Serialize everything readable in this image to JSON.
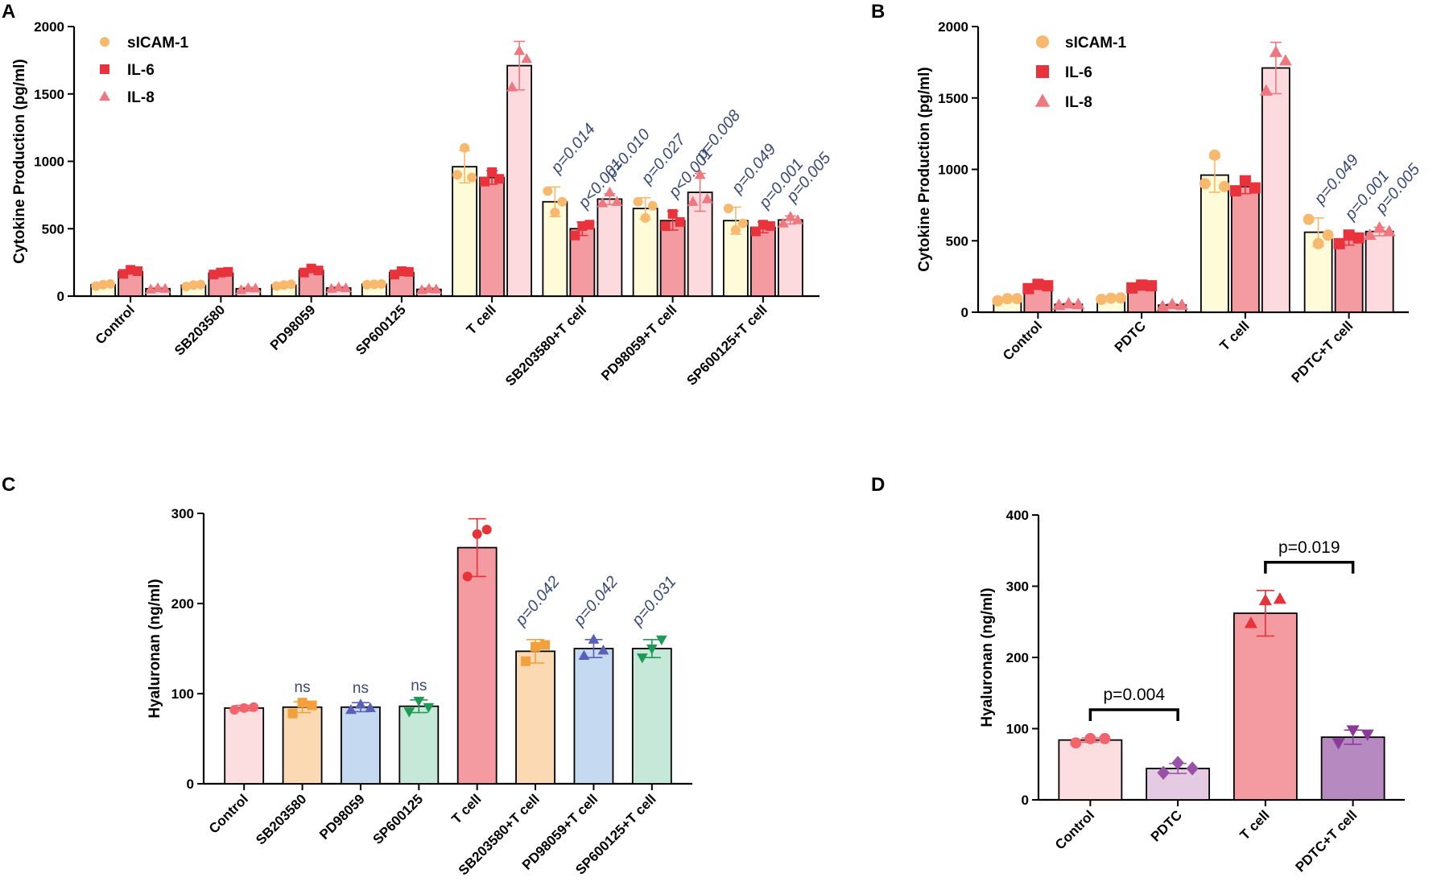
{
  "chart_data": [
    {
      "panel": "A",
      "type": "bar",
      "ylabel": "Cytokine Production (pg/ml)",
      "ylim": [
        0,
        2000
      ],
      "yticks": [
        0,
        500,
        1000,
        1500,
        2000
      ],
      "categories": [
        "Control",
        "SB203580",
        "PD98059",
        "SP600125",
        "T cell",
        "SB203580+T cell",
        "PD98059+T cell",
        "SP600125+T cell"
      ],
      "legend": [
        {
          "name": "sICAM-1",
          "marker": "circle",
          "color": "#f6b96e"
        },
        {
          "name": "IL-6",
          "marker": "square",
          "color": "#e8323c"
        },
        {
          "name": "IL-8",
          "marker": "triangle",
          "color": "#ef7880"
        }
      ],
      "series": [
        {
          "name": "sICAM-1",
          "fill": "#fdfbd8",
          "point_color": "#f6b96e",
          "marker": "circle",
          "values": [
            85,
            80,
            82,
            88,
            960,
            700,
            650,
            560
          ],
          "errors": [
            8,
            8,
            8,
            6,
            120,
            110,
            80,
            100
          ],
          "points": [
            [
              75,
              85,
              90
            ],
            [
              72,
              82,
              86
            ],
            [
              75,
              82,
              88
            ],
            [
              85,
              88,
              90
            ],
            [
              900,
              1100,
              880
            ],
            [
              780,
              620,
              700
            ],
            [
              700,
              580,
              670
            ],
            [
              650,
              490,
              540
            ]
          ]
        },
        {
          "name": "IL-6",
          "fill": "#f49aa1",
          "point_color": "#e8323c",
          "marker": "square",
          "values": [
            180,
            170,
            190,
            175,
            880,
            500,
            560,
            510
          ],
          "errors": [
            15,
            10,
            15,
            15,
            50,
            50,
            70,
            40
          ],
          "points": [
            [
              165,
              195,
              185
            ],
            [
              160,
              175,
              180
            ],
            [
              175,
              205,
              190
            ],
            [
              160,
              185,
              180
            ],
            [
              850,
              920,
              870
            ],
            [
              450,
              520,
              530
            ],
            [
              520,
              610,
              550
            ],
            [
              480,
              530,
              520
            ]
          ]
        },
        {
          "name": "IL-8",
          "fill": "#fcdadd",
          "point_color": "#ef7880",
          "marker": "triangle",
          "values": [
            55,
            55,
            60,
            50,
            1710,
            720,
            770,
            565
          ],
          "errors": [
            8,
            10,
            10,
            10,
            180,
            40,
            140,
            30
          ],
          "points": [
            [
              50,
              60,
              55
            ],
            [
              45,
              60,
              58
            ],
            [
              55,
              65,
              60
            ],
            [
              45,
              55,
              50
            ],
            [
              1550,
              1820,
              1760
            ],
            [
              690,
              770,
              700
            ],
            [
              700,
              900,
              720
            ],
            [
              540,
              590,
              565
            ]
          ]
        }
      ],
      "annotations": [
        {
          "category": "SB203580+T cell",
          "labels": [
            "p=0.014",
            "p<0.001",
            "p=0.010"
          ]
        },
        {
          "category": "PD98059+T cell",
          "labels": [
            "p=0.027",
            "p<0.001",
            "p=0.008"
          ]
        },
        {
          "category": "SP600125+T cell",
          "labels": [
            "p=0.049",
            "p=0.001",
            "p=0.005"
          ]
        }
      ]
    },
    {
      "panel": "B",
      "type": "bar",
      "ylabel": "Cytokine Production (pg/ml)",
      "ylim": [
        0,
        2000
      ],
      "yticks": [
        0,
        500,
        1000,
        1500,
        2000
      ],
      "categories": [
        "Control",
        "PDTC",
        "T cell",
        "PDTC+T cell"
      ],
      "legend": [
        {
          "name": "sICAM-1",
          "marker": "circle",
          "color": "#f6b96e"
        },
        {
          "name": "IL-6",
          "marker": "square",
          "color": "#e8323c"
        },
        {
          "name": "IL-8",
          "marker": "triangle",
          "color": "#ef7880"
        }
      ],
      "series": [
        {
          "name": "sICAM-1",
          "fill": "#fdfbd8",
          "point_color": "#f6b96e",
          "marker": "circle",
          "values": [
            90,
            95,
            960,
            560
          ],
          "errors": [
            8,
            8,
            120,
            100
          ],
          "points": [
            [
              80,
              95,
              95
            ],
            [
              90,
              98,
              100
            ],
            [
              900,
              1100,
              880
            ],
            [
              650,
              480,
              540
            ]
          ]
        },
        {
          "name": "IL-6",
          "fill": "#f49aa1",
          "point_color": "#e8323c",
          "marker": "square",
          "values": [
            180,
            180,
            880,
            510
          ],
          "errors": [
            15,
            10,
            50,
            40
          ],
          "points": [
            [
              165,
              195,
              185
            ],
            [
              170,
              190,
              185
            ],
            [
              850,
              920,
              870
            ],
            [
              480,
              540,
              520
            ]
          ]
        },
        {
          "name": "IL-8",
          "fill": "#fcdadd",
          "point_color": "#ef7880",
          "marker": "triangle",
          "values": [
            55,
            50,
            1710,
            565
          ],
          "errors": [
            8,
            8,
            180,
            30
          ],
          "points": [
            [
              50,
              60,
              55
            ],
            [
              40,
              55,
              50
            ],
            [
              1550,
              1820,
              1760
            ],
            [
              540,
              590,
              565
            ]
          ]
        }
      ],
      "annotations": [
        {
          "category": "PDTC+T cell",
          "labels": [
            "p=0.049",
            "p=0.001",
            "p=0.005"
          ]
        }
      ]
    },
    {
      "panel": "C",
      "type": "bar",
      "ylabel": "Hyaluronan (ng/ml)",
      "ylim": [
        0,
        300
      ],
      "yticks": [
        0,
        100,
        200,
        300
      ],
      "categories": [
        "Control",
        "SB203580",
        "PD98059",
        "SP600125",
        "T cell",
        "SB203580+T cell",
        "PD98059+T cell",
        "SP600125+T cell"
      ],
      "values": [
        84,
        85,
        85,
        86,
        262,
        147,
        150,
        150
      ],
      "errors": [
        3,
        6,
        5,
        7,
        32,
        13,
        10,
        10
      ],
      "fills": [
        "#fcdde0",
        "#fbd9b3",
        "#c5d9f1",
        "#c5e8d8",
        "#f49aa1",
        "#fbd9b3",
        "#c5d9f1",
        "#c5e8d8"
      ],
      "point_colors": [
        "#f2646c",
        "#f2a03c",
        "#5a5fb8",
        "#1f9a55",
        "#e63238",
        "#f2a03c",
        "#5a5fb8",
        "#1f9a55"
      ],
      "markers": [
        "circle",
        "square",
        "triangle",
        "triangle-down",
        "circle",
        "square",
        "triangle",
        "triangle-down"
      ],
      "points": [
        [
          82,
          84,
          85
        ],
        [
          78,
          90,
          87
        ],
        [
          82,
          88,
          84
        ],
        [
          80,
          92,
          85
        ],
        [
          230,
          277,
          282
        ],
        [
          136,
          152,
          154
        ],
        [
          142,
          160,
          148
        ],
        [
          140,
          150,
          160
        ]
      ],
      "annotations": [
        {
          "category": "SB203580",
          "label": "ns"
        },
        {
          "category": "PD98059",
          "label": "ns"
        },
        {
          "category": "SP600125",
          "label": "ns"
        },
        {
          "category": "SB203580+T cell",
          "label": "p=0.042"
        },
        {
          "category": "PD98059+T cell",
          "label": "p=0.042"
        },
        {
          "category": "SP600125+T cell",
          "label": "p=0.031"
        }
      ]
    },
    {
      "panel": "D",
      "type": "bar",
      "ylabel": "Hyaluronan (ng/ml)",
      "ylim": [
        0,
        400
      ],
      "yticks": [
        0,
        100,
        200,
        300,
        400
      ],
      "categories": [
        "Control",
        "PDTC",
        "T cell",
        "PDTC+T cell"
      ],
      "values": [
        84,
        44,
        262,
        88
      ],
      "errors": [
        3,
        7,
        32,
        10
      ],
      "fills": [
        "#fcdde0",
        "#e4cbe3",
        "#f49aa1",
        "#b68ac0"
      ],
      "point_colors": [
        "#f2646c",
        "#9a52a8",
        "#e63238",
        "#8a3a9a"
      ],
      "markers": [
        "circle",
        "diamond",
        "triangle",
        "triangle-down"
      ],
      "points": [
        [
          80,
          86,
          86
        ],
        [
          38,
          52,
          44
        ],
        [
          248,
          280,
          282
        ],
        [
          80,
          98,
          92
        ]
      ],
      "brackets": [
        {
          "from": "Control",
          "to": "PDTC",
          "label": "p=0.004"
        },
        {
          "from": "T cell",
          "to": "PDTC+T cell",
          "label": "p=0.019"
        }
      ]
    }
  ]
}
